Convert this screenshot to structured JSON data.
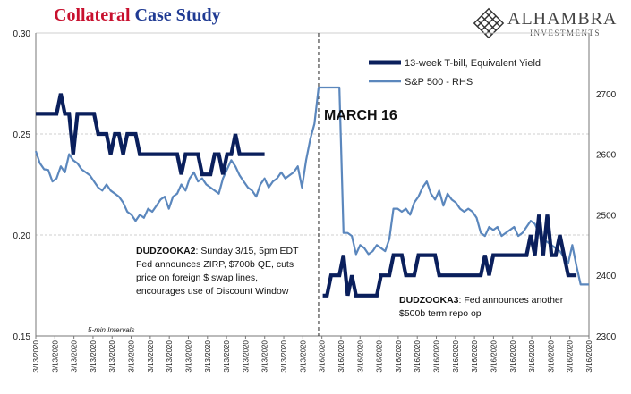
{
  "title": {
    "part1": "Collateral",
    "part2": "Case Study"
  },
  "brand": {
    "name": "ALHAMBRA",
    "sub": "INVESTMENTS",
    "logo_icon": "diamond-lattice-icon"
  },
  "chart_data": {
    "type": "line",
    "colors": {
      "tbill": "#0a1f5c",
      "spx": "#5b87bd",
      "grid": "#cfcfcf",
      "divider": "#222222",
      "text": "#222222"
    },
    "legend_placement": "top-right",
    "grid": true,
    "y_left": {
      "ylim": [
        0.15,
        0.3
      ],
      "ticks": [
        "0.15",
        "0.20",
        "0.25",
        "0.30"
      ]
    },
    "y_right": {
      "ylim": [
        2300,
        2800
      ],
      "ticks": [
        "2300",
        "2400",
        "2500",
        "2600",
        "2700"
      ]
    },
    "x_tick_labels": [
      "3/13/2020",
      "3/13/2020",
      "3/13/2020",
      "3/13/2020",
      "3/13/2020",
      "3/13/2020",
      "3/13/2020",
      "3/13/2020",
      "3/13/2020",
      "3/13/2020",
      "3/13/2020",
      "3/13/2020",
      "3/13/2020",
      "3/13/2020",
      "3/13/2020",
      "3/16/2020",
      "3/16/2020",
      "3/16/2020",
      "3/16/2020",
      "3/16/2020",
      "3/16/2020",
      "3/16/2020",
      "3/16/2020",
      "3/16/2020",
      "3/16/2020",
      "3/16/2020",
      "3/16/2020",
      "3/16/2020",
      "3/16/2020",
      "3/16/2020"
    ],
    "n_points": 134,
    "divider_index": 68,
    "series": [
      {
        "name": "13-week T-bill, Equivalent Yield",
        "axis": "left",
        "values": [
          0.26,
          0.26,
          0.26,
          0.26,
          0.26,
          0.26,
          0.27,
          0.26,
          0.26,
          0.24,
          0.26,
          0.26,
          0.26,
          0.26,
          0.26,
          0.25,
          0.25,
          0.25,
          0.24,
          0.25,
          0.25,
          0.24,
          0.25,
          0.25,
          0.25,
          0.24,
          0.24,
          0.24,
          0.24,
          0.24,
          0.24,
          0.24,
          0.24,
          0.24,
          0.24,
          0.23,
          0.24,
          0.24,
          0.24,
          0.24,
          0.23,
          0.23,
          0.23,
          0.24,
          0.24,
          0.23,
          0.24,
          0.24,
          0.25,
          0.24,
          0.24,
          0.24,
          0.24,
          0.24,
          0.24,
          0.24,
          null,
          null,
          null,
          null,
          null,
          null,
          null,
          null,
          null,
          null,
          null,
          null,
          null,
          0.17,
          0.17,
          0.18,
          0.18,
          0.18,
          0.19,
          0.17,
          0.18,
          0.17,
          0.17,
          0.17,
          0.17,
          0.17,
          0.17,
          0.18,
          0.18,
          0.18,
          0.19,
          0.19,
          0.19,
          0.18,
          0.18,
          0.18,
          0.19,
          0.19,
          0.19,
          0.19,
          0.19,
          0.18,
          0.18,
          0.18,
          0.18,
          0.18,
          0.18,
          0.18,
          0.18,
          0.18,
          0.18,
          0.18,
          0.19,
          0.18,
          0.19,
          0.19,
          0.19,
          0.19,
          0.19,
          0.19,
          0.19,
          0.19,
          0.19,
          0.2,
          0.19,
          0.21,
          0.19,
          0.21,
          0.19,
          0.19,
          0.2,
          0.19,
          0.18,
          0.18,
          0.18,
          null,
          null,
          null,
          null,
          null,
          null,
          null
        ]
      },
      {
        "name": "S&P 500 - RHS",
        "axis": "right",
        "values": [
          2605,
          2585,
          2575,
          2574,
          2555,
          2560,
          2580,
          2570,
          2600,
          2590,
          2585,
          2575,
          2570,
          2565,
          2555,
          2545,
          2540,
          2550,
          2540,
          2535,
          2530,
          2520,
          2505,
          2500,
          2490,
          2500,
          2495,
          2510,
          2505,
          2515,
          2525,
          2530,
          2510,
          2530,
          2535,
          2550,
          2540,
          2560,
          2570,
          2555,
          2560,
          2550,
          2545,
          2540,
          2535,
          2560,
          2575,
          2590,
          2580,
          2565,
          2555,
          2545,
          2540,
          2530,
          2550,
          2560,
          2545,
          2555,
          2560,
          2570,
          2560,
          2565,
          2570,
          2580,
          2545,
          2590,
          2625,
          2650,
          2710,
          2710,
          2710,
          2710,
          2710,
          2710,
          2470,
          2470,
          2465,
          2435,
          2450,
          2445,
          2435,
          2440,
          2450,
          2445,
          2440,
          2460,
          2510,
          2510,
          2505,
          2510,
          2500,
          2520,
          2530,
          2545,
          2555,
          2535,
          2525,
          2540,
          2515,
          2535,
          2525,
          2520,
          2510,
          2505,
          2510,
          2505,
          2495,
          2470,
          2465,
          2480,
          2475,
          2480,
          2465,
          2470,
          2475,
          2480,
          2465,
          2470,
          2480,
          2490,
          2485,
          2470,
          2460,
          2455,
          2450,
          2445,
          2440,
          2430,
          2420,
          2450,
          2415,
          2385,
          2385,
          2385
        ]
      }
    ],
    "annotations": {
      "march16": "MARCH 16",
      "five_min": "5-min Intervals",
      "dudzooka2_bold": "DUDZOOKA2",
      "dudzooka2_line1": ": Sunday 3/15, 5pm EDT",
      "dudzooka2_line2": "Fed announces ZIRP, $700b QE, cuts",
      "dudzooka2_line3": "price on foreign $ swap lines,",
      "dudzooka2_line4": "encourages use of Discount Window",
      "dudzooka3_bold": "DUDZOOKA3",
      "dudzooka3_line1": ": Fed announces another",
      "dudzooka3_line2": "$500b term repo op"
    }
  }
}
